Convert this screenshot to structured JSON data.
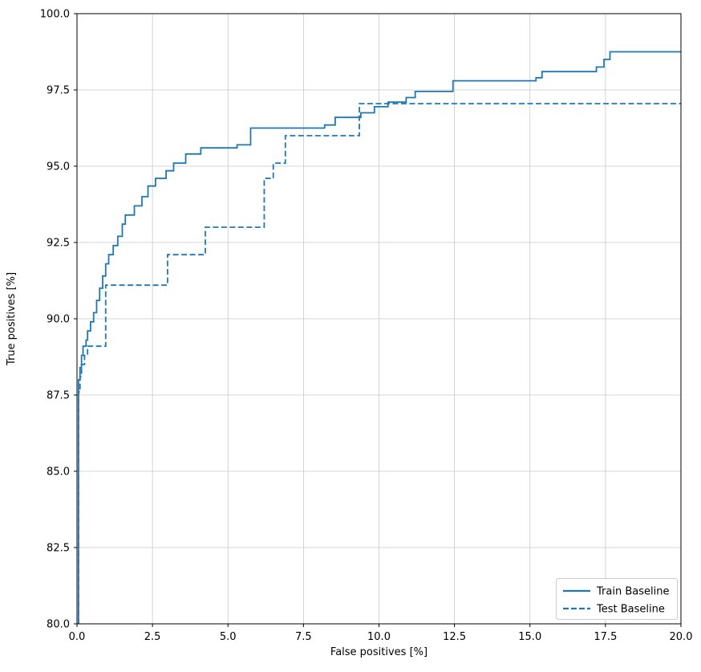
{
  "chart_data": {
    "type": "line",
    "title": "",
    "xlabel": "False positives [%]",
    "ylabel": "True positives [%]",
    "xlim": [
      0,
      20
    ],
    "ylim": [
      80,
      100
    ],
    "x_ticks": [
      0,
      2.5,
      5,
      7.5,
      10,
      12.5,
      15,
      17.5,
      20
    ],
    "x_tick_labels": [
      "0.0",
      "2.5",
      "5.0",
      "7.5",
      "10.0",
      "12.5",
      "15.0",
      "17.5",
      "20.0"
    ],
    "y_ticks": [
      80,
      82.5,
      85,
      87.5,
      90,
      92.5,
      95,
      97.5,
      100
    ],
    "y_tick_labels": [
      "80.0",
      "82.5",
      "85.0",
      "87.5",
      "90.0",
      "92.5",
      "95.0",
      "97.5",
      "100.0"
    ],
    "grid": true,
    "grid_color": "#c9c9c9",
    "line_color": "#1f77b4",
    "legend_position": "lower right",
    "series": [
      {
        "name": "Train Baseline",
        "style": "solid",
        "step": "post",
        "points": [
          [
            0.05,
            80.0
          ],
          [
            0.05,
            88.0
          ],
          [
            0.1,
            88.4
          ],
          [
            0.15,
            88.8
          ],
          [
            0.2,
            89.1
          ],
          [
            0.3,
            89.3
          ],
          [
            0.35,
            89.6
          ],
          [
            0.45,
            89.9
          ],
          [
            0.55,
            90.2
          ],
          [
            0.65,
            90.6
          ],
          [
            0.75,
            91.0
          ],
          [
            0.85,
            91.4
          ],
          [
            0.95,
            91.8
          ],
          [
            1.05,
            92.1
          ],
          [
            1.2,
            92.4
          ],
          [
            1.35,
            92.7
          ],
          [
            1.5,
            93.1
          ],
          [
            1.6,
            93.4
          ],
          [
            1.9,
            93.7
          ],
          [
            2.15,
            94.0
          ],
          [
            2.35,
            94.35
          ],
          [
            2.6,
            94.6
          ],
          [
            2.95,
            94.85
          ],
          [
            3.2,
            95.1
          ],
          [
            3.6,
            95.4
          ],
          [
            4.1,
            95.6
          ],
          [
            5.3,
            95.7
          ],
          [
            5.75,
            96.25
          ],
          [
            8.2,
            96.35
          ],
          [
            8.55,
            96.6
          ],
          [
            9.4,
            96.75
          ],
          [
            9.85,
            96.95
          ],
          [
            10.3,
            97.1
          ],
          [
            10.9,
            97.25
          ],
          [
            11.2,
            97.45
          ],
          [
            12.45,
            97.8
          ],
          [
            15.2,
            97.9
          ],
          [
            15.4,
            98.1
          ],
          [
            17.2,
            98.25
          ],
          [
            17.45,
            98.5
          ],
          [
            17.65,
            98.75
          ],
          [
            20.0,
            98.75
          ]
        ]
      },
      {
        "name": "Test Baseline",
        "style": "dashed",
        "step": "post",
        "points": [
          [
            0.05,
            80.0
          ],
          [
            0.05,
            87.6
          ],
          [
            0.1,
            88.1
          ],
          [
            0.15,
            88.5
          ],
          [
            0.25,
            88.8
          ],
          [
            0.35,
            89.1
          ],
          [
            0.95,
            91.1
          ],
          [
            3.0,
            92.1
          ],
          [
            4.25,
            93.0
          ],
          [
            6.2,
            94.6
          ],
          [
            6.5,
            95.1
          ],
          [
            6.9,
            96.0
          ],
          [
            9.35,
            97.05
          ],
          [
            20.0,
            97.05
          ]
        ]
      }
    ]
  }
}
